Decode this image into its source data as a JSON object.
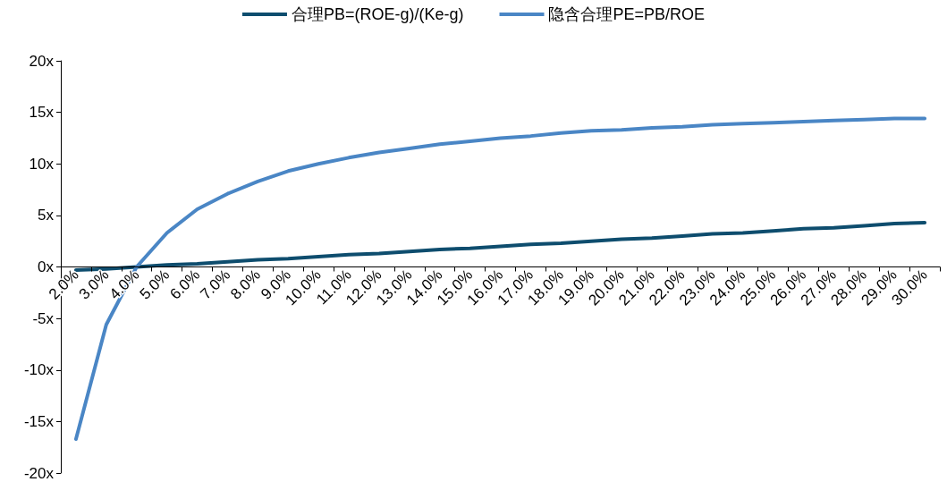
{
  "chart_data": {
    "type": "line",
    "categories": [
      "2.0%",
      "3.0%",
      "4.0%",
      "5.0%",
      "6.0%",
      "7.0%",
      "8.0%",
      "9.0%",
      "10.0%",
      "11.0%",
      "12.0%",
      "13.0%",
      "14.0%",
      "15.0%",
      "16.0%",
      "17.0%",
      "18.0%",
      "19.0%",
      "20.0%",
      "21.0%",
      "22.0%",
      "23.0%",
      "24.0%",
      "25.0%",
      "26.0%",
      "27.0%",
      "28.0%",
      "29.0%",
      "30.0%"
    ],
    "series": [
      {
        "name": "合理PB=(ROE-g)/(Ke-g)",
        "color": "#0e4d6e",
        "values": [
          -0.3,
          -0.2,
          0,
          0.2,
          0.3,
          0.5,
          0.7,
          0.8,
          1,
          1.2,
          1.3,
          1.5,
          1.7,
          1.8,
          2,
          2.2,
          2.3,
          2.5,
          2.7,
          2.8,
          3,
          3.2,
          3.3,
          3.5,
          3.7,
          3.8,
          4,
          4.2,
          4.3
        ]
      },
      {
        "name": "隐含合理PE=PB/ROE",
        "color": "#4a86c5",
        "values": [
          -16.7,
          -5.6,
          0,
          3.3,
          5.6,
          7.1,
          8.3,
          9.3,
          10,
          10.6,
          11.1,
          11.5,
          11.9,
          12.2,
          12.5,
          12.7,
          13.0,
          13.2,
          13.3,
          13.5,
          13.6,
          13.8,
          13.9,
          14.0,
          14.1,
          14.2,
          14.3,
          14.4,
          14.4
        ]
      }
    ],
    "ylim": [
      -20,
      20
    ],
    "yticks": [
      {
        "value": -20,
        "label": "-20x"
      },
      {
        "value": -15,
        "label": "-15x"
      },
      {
        "value": -10,
        "label": "-10x"
      },
      {
        "value": -5,
        "label": "-5x"
      },
      {
        "value": 0,
        "label": "0x"
      },
      {
        "value": 5,
        "label": "5x"
      },
      {
        "value": 10,
        "label": "10x"
      },
      {
        "value": 15,
        "label": "15x"
      },
      {
        "value": 20,
        "label": "20x"
      }
    ],
    "grid": false,
    "legend": "top",
    "marker": "none",
    "line_style": "solid"
  }
}
